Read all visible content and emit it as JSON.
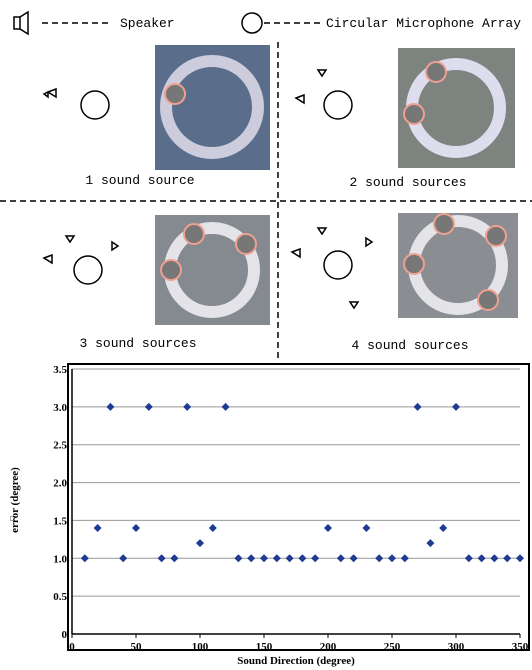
{
  "legend": {
    "speaker": "Speaker",
    "array": "Circular Microphone Array"
  },
  "panels": [
    "1 sound source",
    "2 sound sources",
    "3 sound sources",
    "4 sound sources"
  ],
  "chart_data": {
    "type": "scatter",
    "x_label": "Sound Direction (degree)",
    "y_label": "error (degree)",
    "y_label_mark": "□",
    "color": "#1f3a93",
    "x": [
      10,
      20,
      30,
      40,
      50,
      60,
      70,
      80,
      90,
      100,
      110,
      120,
      130,
      140,
      150,
      160,
      170,
      180,
      190,
      200,
      210,
      220,
      230,
      240,
      250,
      260,
      270,
      280,
      290,
      300,
      310,
      320,
      330,
      340,
      350
    ],
    "values": [
      1.0,
      1.4,
      3.0,
      1.0,
      1.4,
      3.0,
      1.0,
      1.0,
      3.0,
      1.2,
      1.4,
      3.0,
      1.0,
      1.0,
      1.0,
      1.0,
      1.0,
      1.0,
      1.0,
      1.4,
      1.0,
      1.0,
      1.4,
      1.0,
      1.0,
      1.0,
      3.0,
      1.2,
      1.4,
      3.0,
      1.0,
      1.0,
      1.0,
      1.0,
      1.0
    ],
    "xlim": [
      0,
      350
    ],
    "xticks": [
      0,
      50,
      100,
      150,
      200,
      250,
      300,
      350
    ],
    "ylim": [
      0,
      3.5
    ],
    "yticks": [
      0,
      0.5,
      {
        "value": 1,
        "label": "1.0"
      },
      1.5,
      {
        "value": 2,
        "label": "2.0"
      },
      2.5,
      {
        "value": 3,
        "label": "3.0"
      },
      3.5
    ],
    "grid": true
  }
}
